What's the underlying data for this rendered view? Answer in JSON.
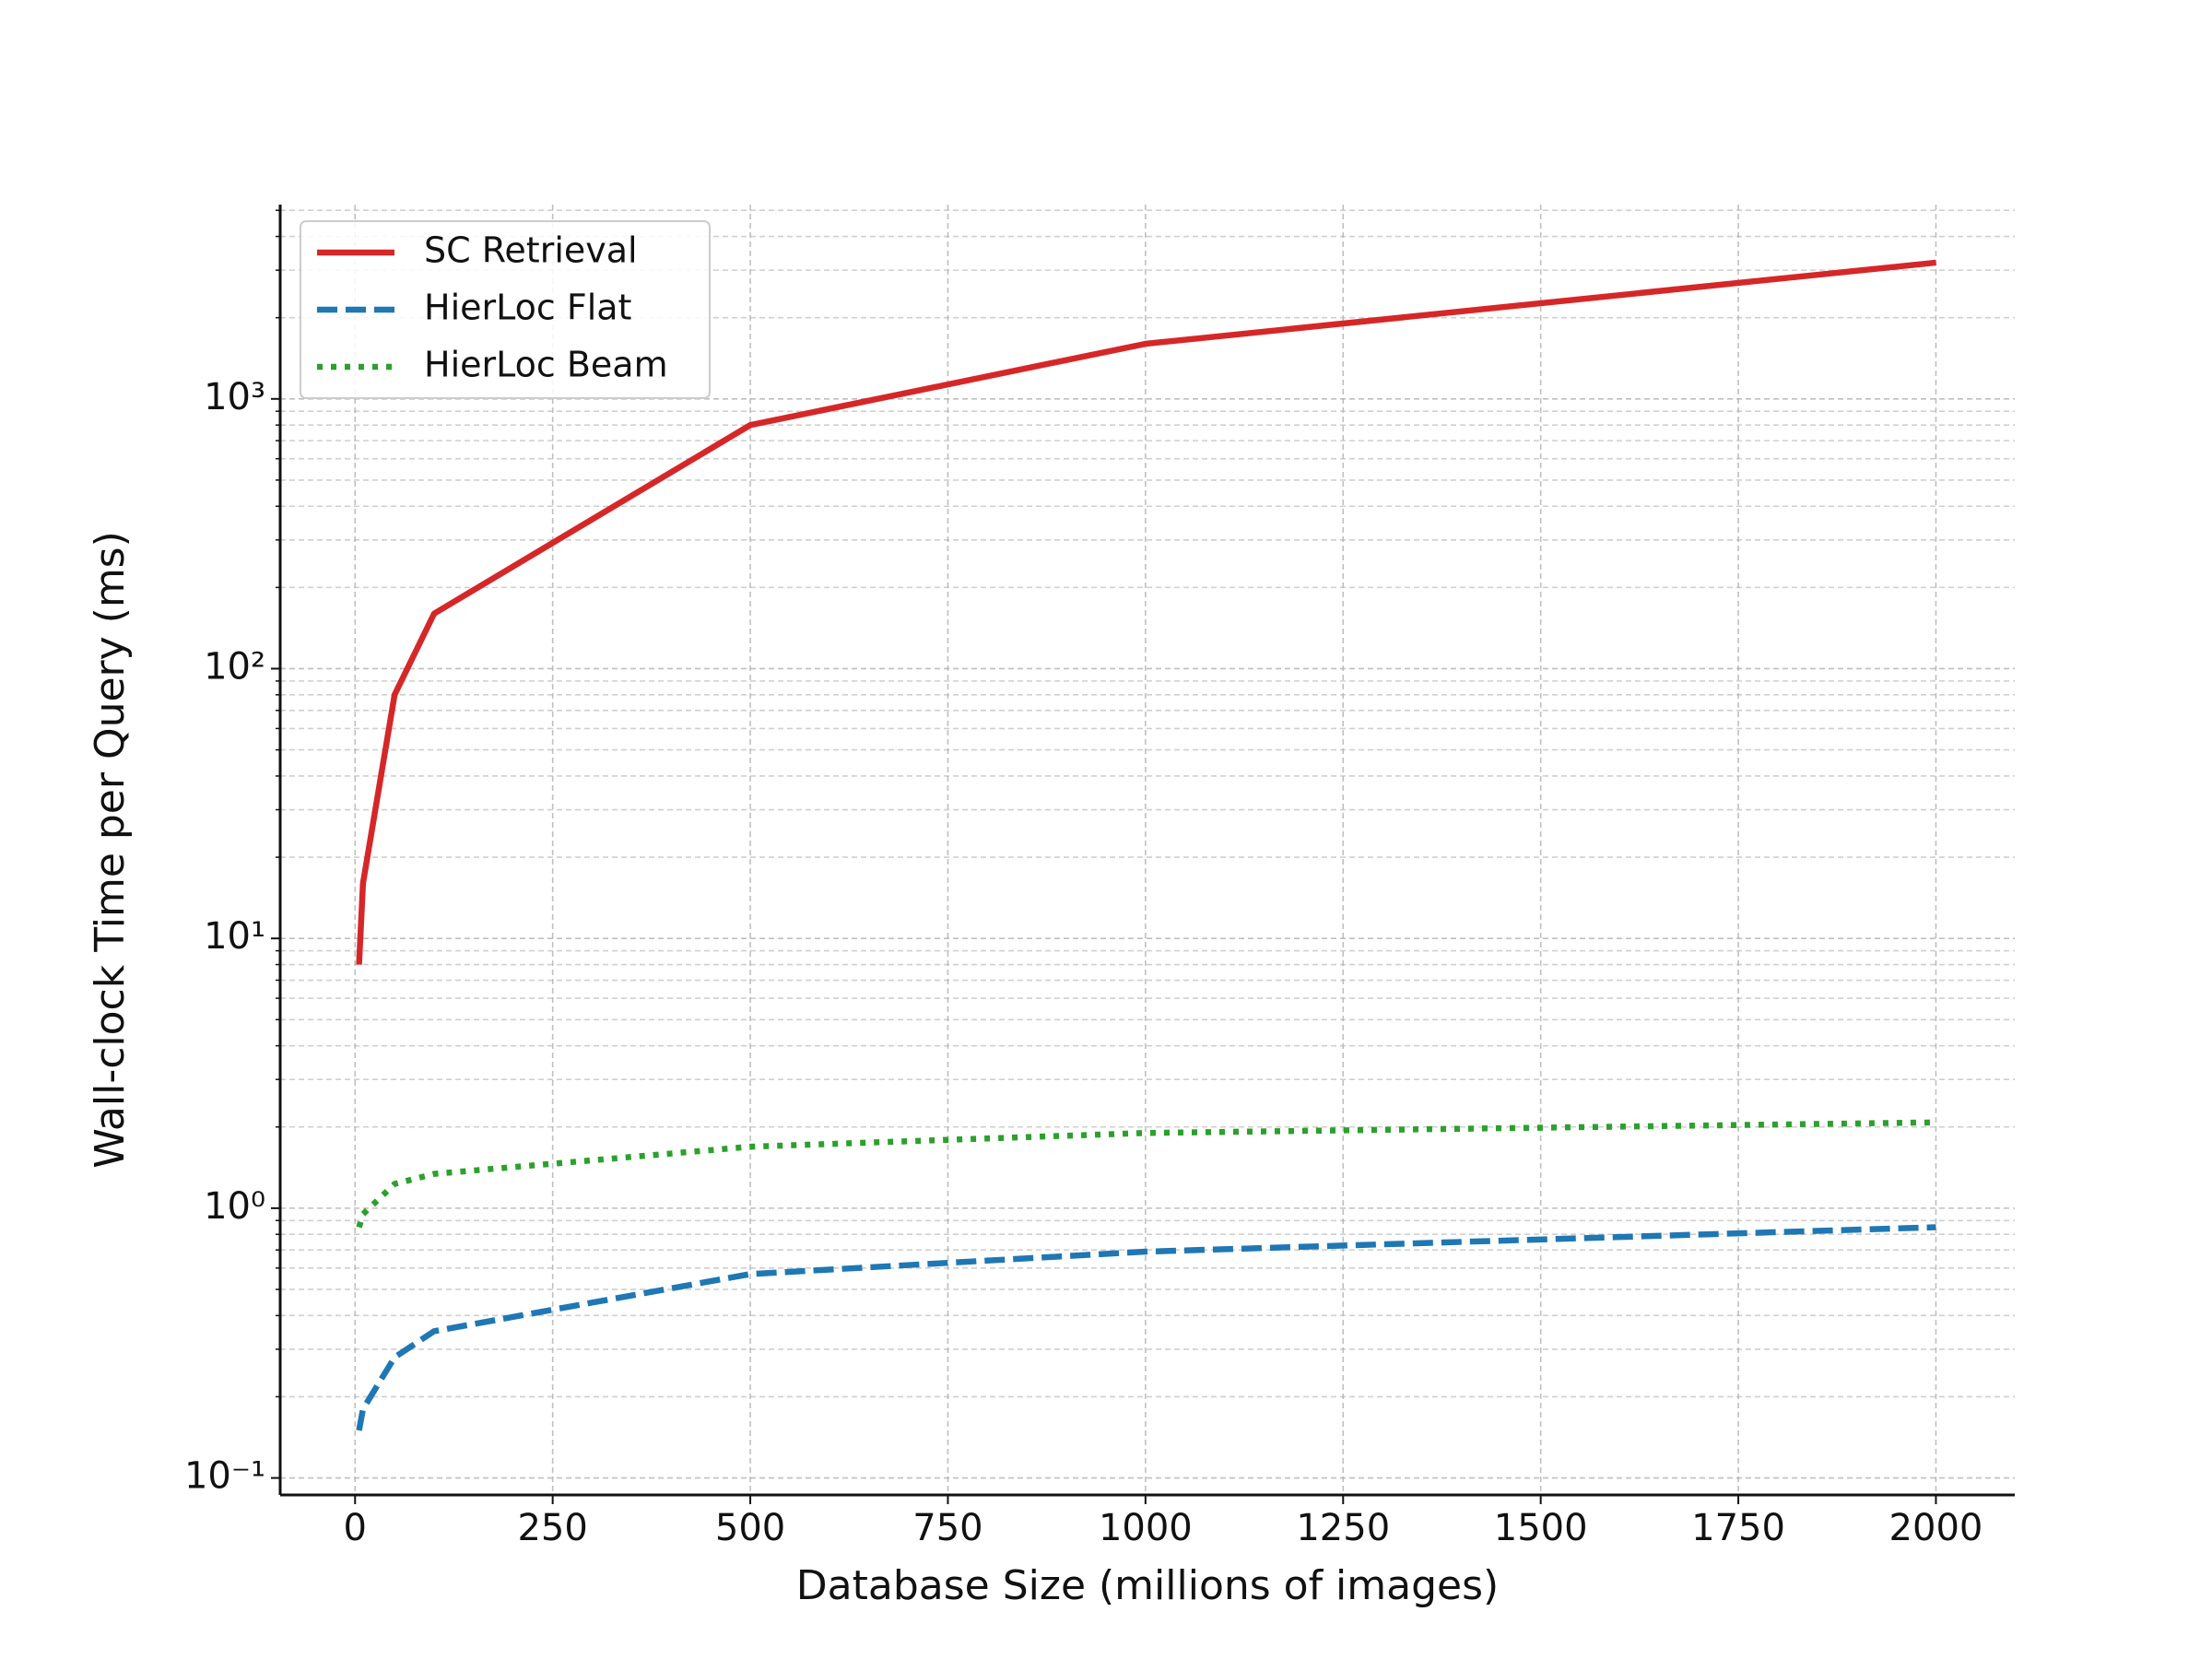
{
  "chart_data": {
    "type": "line",
    "xlabel": "Database Size (millions of images)",
    "ylabel": "Wall-clock Time per Query (ms)",
    "x": [
      5,
      10,
      50,
      100,
      500,
      1000,
      2000
    ],
    "series": [
      {
        "name": "SC Retrieval",
        "color": "#d62728",
        "style": "solid",
        "values": [
          8,
          16,
          80,
          160,
          800,
          1600,
          3200
        ]
      },
      {
        "name": "HierLoc Flat",
        "color": "#1f77b4",
        "style": "dashed",
        "values": [
          0.15,
          0.18,
          0.28,
          0.35,
          0.57,
          0.69,
          0.85
        ]
      },
      {
        "name": "HierLoc Beam",
        "color": "#2ca02c",
        "style": "dotted",
        "values": [
          0.85,
          0.95,
          1.23,
          1.34,
          1.69,
          1.9,
          2.08
        ]
      }
    ],
    "xlim": [
      -94.75,
      2099.75
    ],
    "xticks": [
      0,
      250,
      500,
      750,
      1000,
      1250,
      1500,
      1750,
      2000
    ],
    "ylim": [
      0.0865,
      5250
    ],
    "yscale": "log",
    "yticks": [
      {
        "value": 0.1,
        "label": "10⁻¹"
      },
      {
        "value": 1,
        "label": "10⁰"
      },
      {
        "value": 10,
        "label": "10¹"
      },
      {
        "value": 100,
        "label": "10²"
      },
      {
        "value": 1000,
        "label": "10³"
      }
    ],
    "yminorticks": [
      0.2,
      0.3,
      0.4,
      0.5,
      0.6,
      0.7,
      0.8,
      0.9,
      2,
      3,
      4,
      5,
      6,
      7,
      8,
      9,
      20,
      30,
      40,
      50,
      60,
      70,
      80,
      90,
      200,
      300,
      400,
      500,
      600,
      700,
      800,
      900,
      2000,
      3000,
      4000,
      5000
    ],
    "grid": true,
    "legend": "upper left"
  }
}
